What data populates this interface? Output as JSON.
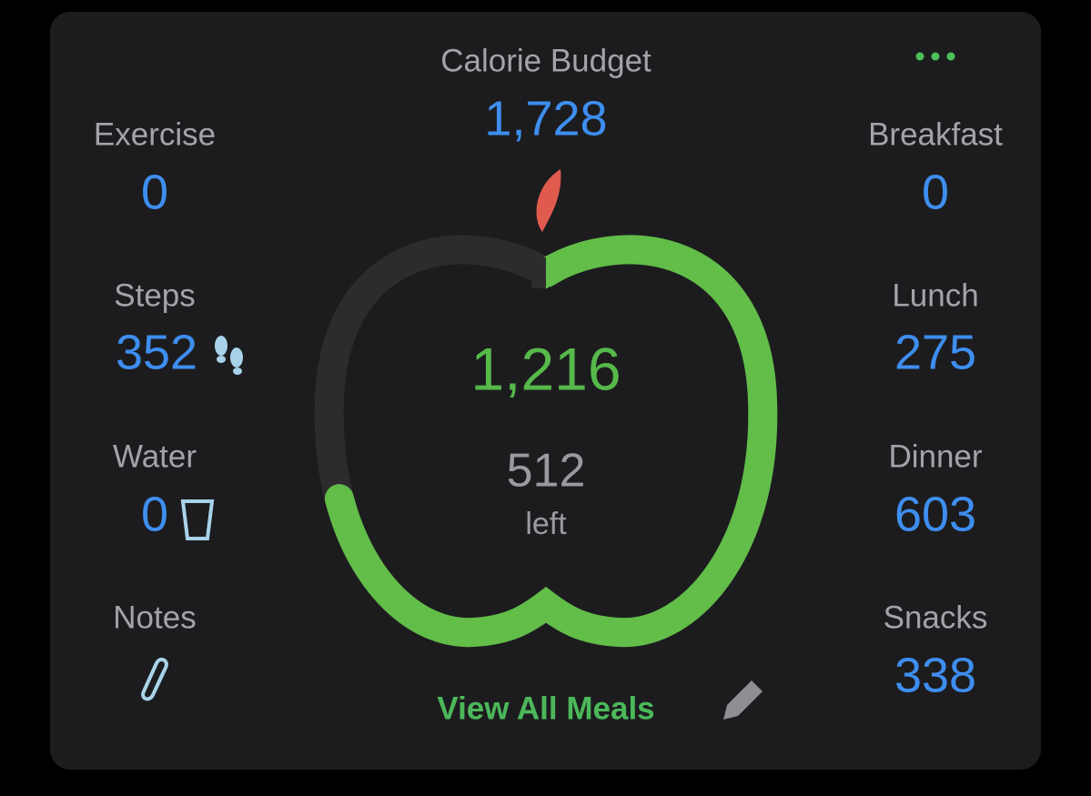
{
  "header": {
    "title": "Calorie Budget",
    "budget": "1,728"
  },
  "left": [
    {
      "label": "Exercise",
      "value": "0"
    },
    {
      "label": "Steps",
      "value": "352"
    },
    {
      "label": "Water",
      "value": "0"
    },
    {
      "label": "Notes"
    }
  ],
  "right": [
    {
      "label": "Breakfast",
      "value": "0"
    },
    {
      "label": "Lunch",
      "value": "275"
    },
    {
      "label": "Dinner",
      "value": "603"
    },
    {
      "label": "Snacks",
      "value": "338"
    }
  ],
  "ring": {
    "consumed": "1,216",
    "remaining": "512",
    "remaining_label": "left"
  },
  "footer": {
    "link": "View All Meals"
  }
}
